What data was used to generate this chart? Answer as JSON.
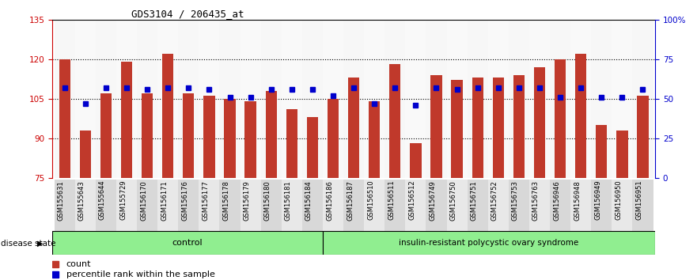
{
  "title": "GDS3104 / 206435_at",
  "samples": [
    "GSM155631",
    "GSM155643",
    "GSM155644",
    "GSM155729",
    "GSM156170",
    "GSM156171",
    "GSM156176",
    "GSM156177",
    "GSM156178",
    "GSM156179",
    "GSM156180",
    "GSM156181",
    "GSM156184",
    "GSM156186",
    "GSM156187",
    "GSM156510",
    "GSM156511",
    "GSM156512",
    "GSM156749",
    "GSM156750",
    "GSM156751",
    "GSM156752",
    "GSM156753",
    "GSM156763",
    "GSM156946",
    "GSM156948",
    "GSM156949",
    "GSM156950",
    "GSM156951"
  ],
  "bar_values": [
    120,
    93,
    107,
    119,
    107,
    122,
    107,
    106,
    105,
    104,
    108,
    101,
    98,
    105,
    113,
    104,
    118,
    88,
    114,
    112,
    113,
    113,
    114,
    117,
    120,
    122,
    95,
    93,
    106
  ],
  "percentile_values": [
    57,
    47,
    57,
    57,
    56,
    57,
    57,
    56,
    51,
    51,
    56,
    56,
    56,
    52,
    57,
    47,
    57,
    46,
    57,
    56,
    57,
    57,
    57,
    57,
    51,
    57,
    51,
    51,
    56
  ],
  "control_count": 13,
  "disease_count": 16,
  "control_label": "control",
  "disease_label": "insulin-resistant polycystic ovary syndrome",
  "disease_state_label": "disease state",
  "ylim_left": [
    75,
    135
  ],
  "ylim_right": [
    0,
    100
  ],
  "yticks_left": [
    75,
    90,
    105,
    120,
    135
  ],
  "yticks_right": [
    0,
    25,
    50,
    75,
    100
  ],
  "ytick_labels_right": [
    "0",
    "25",
    "50",
    "75",
    "100%"
  ],
  "bar_color": "#C0392B",
  "percentile_color": "#0000CC",
  "bg_color": "#FFFFFF",
  "control_bg": "#90EE90",
  "disease_bg": "#90EE90",
  "legend_count_label": "count",
  "legend_percentile_label": "percentile rank within the sample",
  "left_axis_color": "#CC0000",
  "right_axis_color": "#0000CC",
  "dotted_lines": [
    90,
    105,
    120
  ]
}
